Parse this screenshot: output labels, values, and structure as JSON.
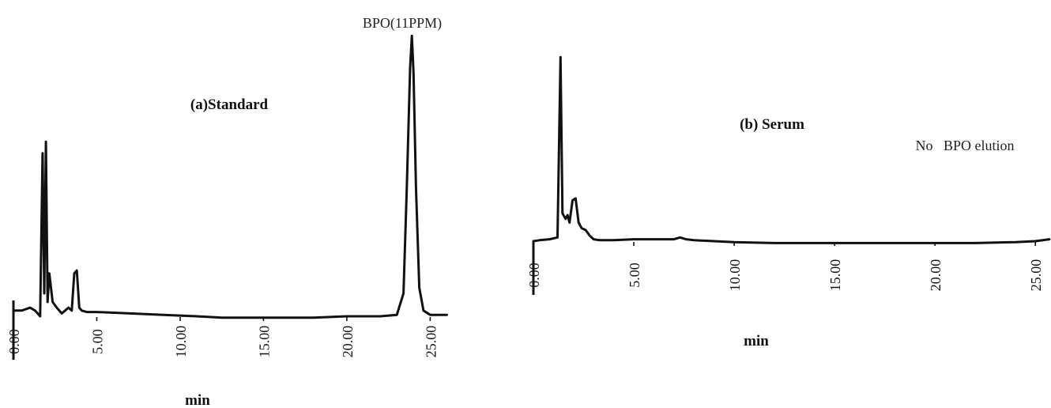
{
  "chart_data": [
    {
      "type": "line",
      "title": "(a)Standard",
      "xlabel": "min",
      "ylabel": "",
      "x_ticks": [
        "0.00",
        "5.00",
        "10.00",
        "15.00",
        "20.00",
        "25.00"
      ],
      "xlim": [
        0,
        26.5
      ],
      "ylim": [
        -0.06,
        1.0
      ],
      "grid": false,
      "annotations": [
        {
          "text": "BPO(11PPM)",
          "x": 23.9
        }
      ],
      "series": [
        {
          "x": [
            0,
            0.5,
            1.0,
            1.3,
            1.6,
            1.75,
            1.85,
            1.95,
            2.05,
            2.15,
            2.25,
            2.35,
            2.6,
            2.9,
            3.1,
            3.3,
            3.5,
            3.65,
            3.8,
            3.95,
            4.1,
            4.4,
            5.0,
            7.0,
            9.0,
            11.0,
            12.5,
            14.0,
            16.0,
            18.0,
            20.0,
            22.0,
            23.0,
            23.4,
            23.6,
            23.8,
            23.9,
            24.0,
            24.15,
            24.35,
            24.6,
            25.0,
            26.0
          ],
          "y": [
            0.02,
            0.02,
            0.03,
            0.02,
            0.0,
            0.57,
            0.08,
            0.61,
            0.05,
            0.15,
            0.1,
            0.05,
            0.03,
            0.01,
            0.02,
            0.03,
            0.02,
            0.15,
            0.16,
            0.03,
            0.02,
            0.015,
            0.015,
            0.01,
            0.005,
            0.0,
            -0.005,
            -0.005,
            -0.005,
            -0.005,
            0.0,
            0.0,
            0.005,
            0.08,
            0.45,
            0.87,
            0.98,
            0.85,
            0.45,
            0.1,
            0.02,
            0.005,
            0.005
          ]
        }
      ]
    },
    {
      "type": "line",
      "title": "(b) Serum",
      "xlabel": "min",
      "ylabel": "",
      "x_ticks": [
        "0.00",
        "5.00",
        "10.00",
        "15.00",
        "20.00",
        "25.00"
      ],
      "xlim": [
        0,
        25.7
      ],
      "ylim": [
        -0.06,
        1.0
      ],
      "grid": false,
      "annotations": [
        {
          "text": "No   BPO elution",
          "x": 19.5
        }
      ],
      "series": [
        {
          "x": [
            0,
            0.3,
            0.8,
            1.2,
            1.35,
            1.45,
            1.6,
            1.7,
            1.8,
            1.95,
            2.1,
            2.25,
            2.4,
            2.6,
            2.8,
            3.0,
            3.3,
            4.0,
            5.0,
            6.0,
            7.0,
            7.3,
            7.6,
            8.0,
            9.0,
            10.0,
            12.0,
            14.0,
            16.0,
            18.0,
            20.0,
            22.0,
            24.0,
            25.0,
            25.7
          ],
          "y": [
            0.0,
            0.005,
            0.01,
            0.02,
            0.99,
            0.15,
            0.12,
            0.14,
            0.1,
            0.22,
            0.23,
            0.1,
            0.07,
            0.06,
            0.03,
            0.01,
            0.005,
            0.005,
            0.01,
            0.01,
            0.01,
            0.02,
            0.01,
            0.005,
            0.0,
            -0.005,
            -0.01,
            -0.01,
            -0.01,
            -0.01,
            -0.01,
            -0.01,
            -0.005,
            0.0,
            0.01
          ]
        }
      ]
    }
  ]
}
